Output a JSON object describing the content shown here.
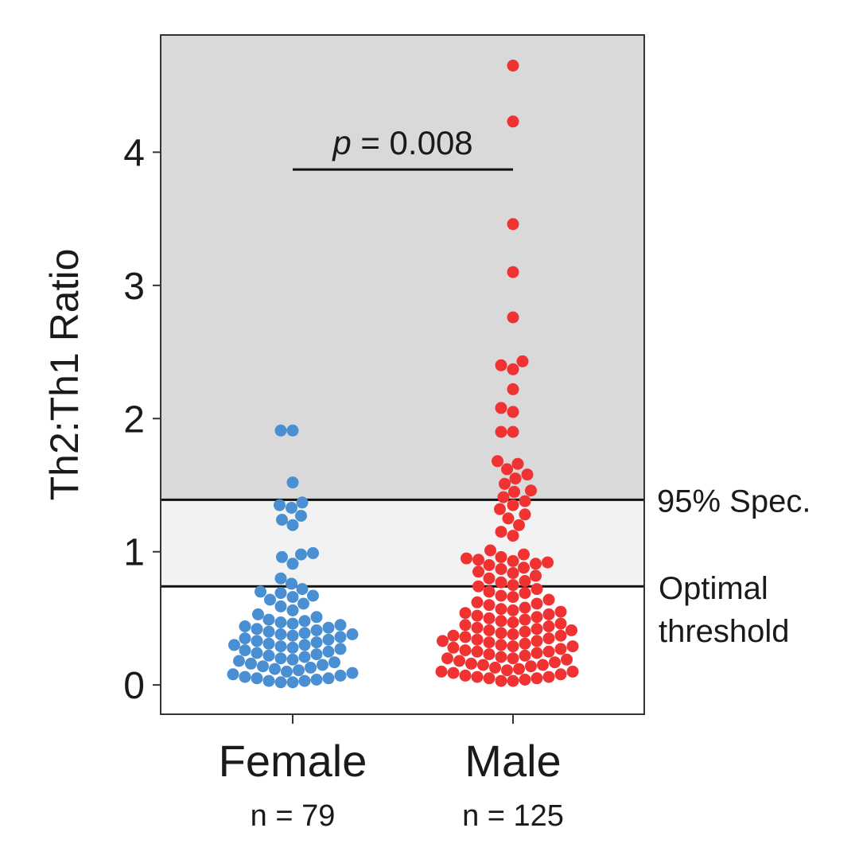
{
  "chart_data": {
    "type": "scatter",
    "title": "",
    "ylabel": "Th2:Th1 Ratio",
    "ylim": [
      -0.22,
      4.88
    ],
    "yticks": [
      0,
      1,
      2,
      3,
      4
    ],
    "ytick_labels": [
      "0",
      "1",
      "2",
      "3",
      "4"
    ],
    "categories": [
      "Female",
      "Male"
    ],
    "n_labels": [
      "n = 79",
      "n = 125"
    ],
    "grid": false,
    "colors": {
      "Female": "#4a8fd1",
      "Male": "#f03232",
      "above_spec_band": "#d9d9d9",
      "between_band": "#f2f2f2",
      "below_band": "#ffffff",
      "line": "#111111"
    },
    "thresholds": [
      {
        "label": "95% Spec.",
        "value": 1.39
      },
      {
        "label": "Optimal threshold",
        "label_lines": [
          "Optimal",
          "threshold"
        ],
        "value": 0.74
      }
    ],
    "significance": {
      "p_letter": "p",
      "p_rest": " = 0.008",
      "from": "Female",
      "to": "Male",
      "y": 3.87
    },
    "series": [
      {
        "name": "Female",
        "values": [
          1.91,
          1.91,
          1.52,
          1.37,
          1.35,
          1.33,
          1.27,
          1.24,
          1.2,
          0.99,
          0.98,
          0.96,
          0.91,
          0.8,
          0.76,
          0.72,
          0.7,
          0.69,
          0.67,
          0.66,
          0.64,
          0.61,
          0.59,
          0.56,
          0.53,
          0.51,
          0.49,
          0.48,
          0.47,
          0.46,
          0.45,
          0.44,
          0.43,
          0.42,
          0.41,
          0.4,
          0.39,
          0.38,
          0.38,
          0.37,
          0.36,
          0.35,
          0.34,
          0.33,
          0.32,
          0.31,
          0.3,
          0.3,
          0.29,
          0.28,
          0.27,
          0.26,
          0.25,
          0.24,
          0.23,
          0.22,
          0.21,
          0.2,
          0.19,
          0.18,
          0.17,
          0.16,
          0.15,
          0.14,
          0.13,
          0.12,
          0.11,
          0.1,
          0.09,
          0.08,
          0.07,
          0.06,
          0.05,
          0.05,
          0.04,
          0.03,
          0.03,
          0.02,
          0.02
        ]
      },
      {
        "name": "Male",
        "values": [
          4.65,
          4.23,
          3.46,
          3.1,
          2.76,
          2.43,
          2.4,
          2.37,
          2.22,
          2.08,
          2.05,
          1.9,
          1.9,
          1.68,
          1.66,
          1.62,
          1.58,
          1.55,
          1.51,
          1.46,
          1.45,
          1.41,
          1.38,
          1.35,
          1.32,
          1.28,
          1.25,
          1.2,
          1.15,
          1.12,
          1.01,
          0.98,
          0.96,
          0.95,
          0.94,
          0.93,
          0.92,
          0.91,
          0.9,
          0.88,
          0.87,
          0.85,
          0.84,
          0.82,
          0.8,
          0.78,
          0.77,
          0.75,
          0.74,
          0.72,
          0.7,
          0.69,
          0.67,
          0.66,
          0.64,
          0.62,
          0.61,
          0.6,
          0.58,
          0.57,
          0.56,
          0.55,
          0.54,
          0.53,
          0.52,
          0.51,
          0.5,
          0.49,
          0.48,
          0.47,
          0.46,
          0.45,
          0.44,
          0.43,
          0.42,
          0.41,
          0.41,
          0.4,
          0.39,
          0.38,
          0.37,
          0.37,
          0.36,
          0.35,
          0.34,
          0.33,
          0.33,
          0.32,
          0.31,
          0.3,
          0.29,
          0.29,
          0.28,
          0.27,
          0.26,
          0.25,
          0.25,
          0.24,
          0.23,
          0.22,
          0.21,
          0.2,
          0.2,
          0.19,
          0.18,
          0.17,
          0.16,
          0.15,
          0.15,
          0.14,
          0.13,
          0.12,
          0.11,
          0.1,
          0.1,
          0.09,
          0.08,
          0.07,
          0.06,
          0.06,
          0.05,
          0.05,
          0.04,
          0.03,
          0.03
        ]
      }
    ]
  }
}
